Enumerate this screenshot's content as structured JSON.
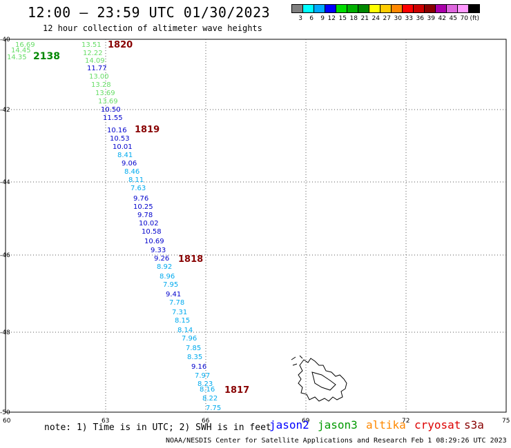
{
  "header": {
    "title": "12:00 – 23:59 UTC 01/30/2023",
    "subtitle": "12 hour collection of altimeter wave heights"
  },
  "legend": {
    "colors": [
      "#808080",
      "#00ffff",
      "#00aaff",
      "#0000ff",
      "#00dd00",
      "#00b000",
      "#008800",
      "#ffff00",
      "#ffcc00",
      "#ff8800",
      "#ff0000",
      "#cc0000",
      "#880000",
      "#aa00aa",
      "#dd66dd",
      "#ff99ff",
      "#000000"
    ],
    "labels": [
      "3",
      "6",
      "9",
      "12",
      "15",
      "18",
      "21",
      "24",
      "27",
      "30",
      "33",
      "36",
      "39",
      "42",
      "45",
      "70",
      "(ft)"
    ]
  },
  "axes": {
    "lon_ticks": [
      "60",
      "63",
      "66",
      "69",
      "72",
      "75"
    ],
    "lat_ticks": [
      "-40",
      "-42",
      "-44",
      "-46",
      "-48",
      "-50"
    ]
  },
  "passes": [
    {
      "label": "1820",
      "color": "#880000"
    },
    {
      "label": "2138",
      "color": "#008800"
    },
    {
      "label": "1819",
      "color": "#880000"
    },
    {
      "label": "1818",
      "color": "#880000"
    },
    {
      "label": "1817",
      "color": "#880000"
    }
  ],
  "wave_labels": [
    {
      "v": "16.69",
      "c": "#66dd66"
    },
    {
      "v": "14.45",
      "c": "#66dd66"
    },
    {
      "v": "14.35",
      "c": "#66dd66"
    },
    {
      "v": "13.51",
      "c": "#66dd66"
    },
    {
      "v": "12.22",
      "c": "#66dd66"
    },
    {
      "v": "14.09",
      "c": "#66dd66"
    },
    {
      "v": "11.77",
      "c": "#0000cc"
    },
    {
      "v": "13.00",
      "c": "#66dd66"
    },
    {
      "v": "13.28",
      "c": "#66dd66"
    },
    {
      "v": "13.69",
      "c": "#66dd66"
    },
    {
      "v": "13.69",
      "c": "#66dd66"
    },
    {
      "v": "10.50",
      "c": "#0000cc"
    },
    {
      "v": "11.55",
      "c": "#0000cc"
    },
    {
      "v": "10.16",
      "c": "#0000cc"
    },
    {
      "v": "10.53",
      "c": "#0000cc"
    },
    {
      "v": "10.01",
      "c": "#0000cc"
    },
    {
      "v": "8.41",
      "c": "#00aaee"
    },
    {
      "v": "9.06",
      "c": "#0000cc"
    },
    {
      "v": "8.46",
      "c": "#00aaee"
    },
    {
      "v": "8.11",
      "c": "#00aaee"
    },
    {
      "v": "7.63",
      "c": "#00aaee"
    },
    {
      "v": "9.76",
      "c": "#0000cc"
    },
    {
      "v": "10.25",
      "c": "#0000cc"
    },
    {
      "v": "9.78",
      "c": "#0000cc"
    },
    {
      "v": "10.02",
      "c": "#0000cc"
    },
    {
      "v": "10.58",
      "c": "#0000cc"
    },
    {
      "v": "10.69",
      "c": "#0000cc"
    },
    {
      "v": "9.33",
      "c": "#0000cc"
    },
    {
      "v": "9.26",
      "c": "#0000cc"
    },
    {
      "v": "8.92",
      "c": "#00aaee"
    },
    {
      "v": "8.96",
      "c": "#00aaee"
    },
    {
      "v": "7.95",
      "c": "#00aaee"
    },
    {
      "v": "9.41",
      "c": "#0000cc"
    },
    {
      "v": "7.78",
      "c": "#00aaee"
    },
    {
      "v": "7.31",
      "c": "#00aaee"
    },
    {
      "v": "8.15",
      "c": "#00aaee"
    },
    {
      "v": "8.14",
      "c": "#00aaee"
    },
    {
      "v": "7.96",
      "c": "#00aaee"
    },
    {
      "v": "7.85",
      "c": "#00aaee"
    },
    {
      "v": "8.35",
      "c": "#00aaee"
    },
    {
      "v": "9.16",
      "c": "#0000cc"
    },
    {
      "v": "7.97",
      "c": "#00aaee"
    },
    {
      "v": "8.23",
      "c": "#00aaee"
    },
    {
      "v": "8.16",
      "c": "#00aaee"
    },
    {
      "v": "8.22",
      "c": "#00aaee"
    },
    {
      "v": "7.75",
      "c": "#00aaee"
    }
  ],
  "note": "note: 1) Time is in UTC; 2) SWH is in feet",
  "satellites": [
    {
      "name": "jason2",
      "color": "#0000ff"
    },
    {
      "name": "jason3",
      "color": "#009900"
    },
    {
      "name": "altika",
      "color": "#ff8800"
    },
    {
      "name": "cryosat",
      "color": "#dd0000"
    },
    {
      "name": "s3a",
      "color": "#880000"
    }
  ],
  "footer": "NOAA/NESDIS Center for Satellite Applications and Research   Feb  1 08:29:26 UTC 2023"
}
